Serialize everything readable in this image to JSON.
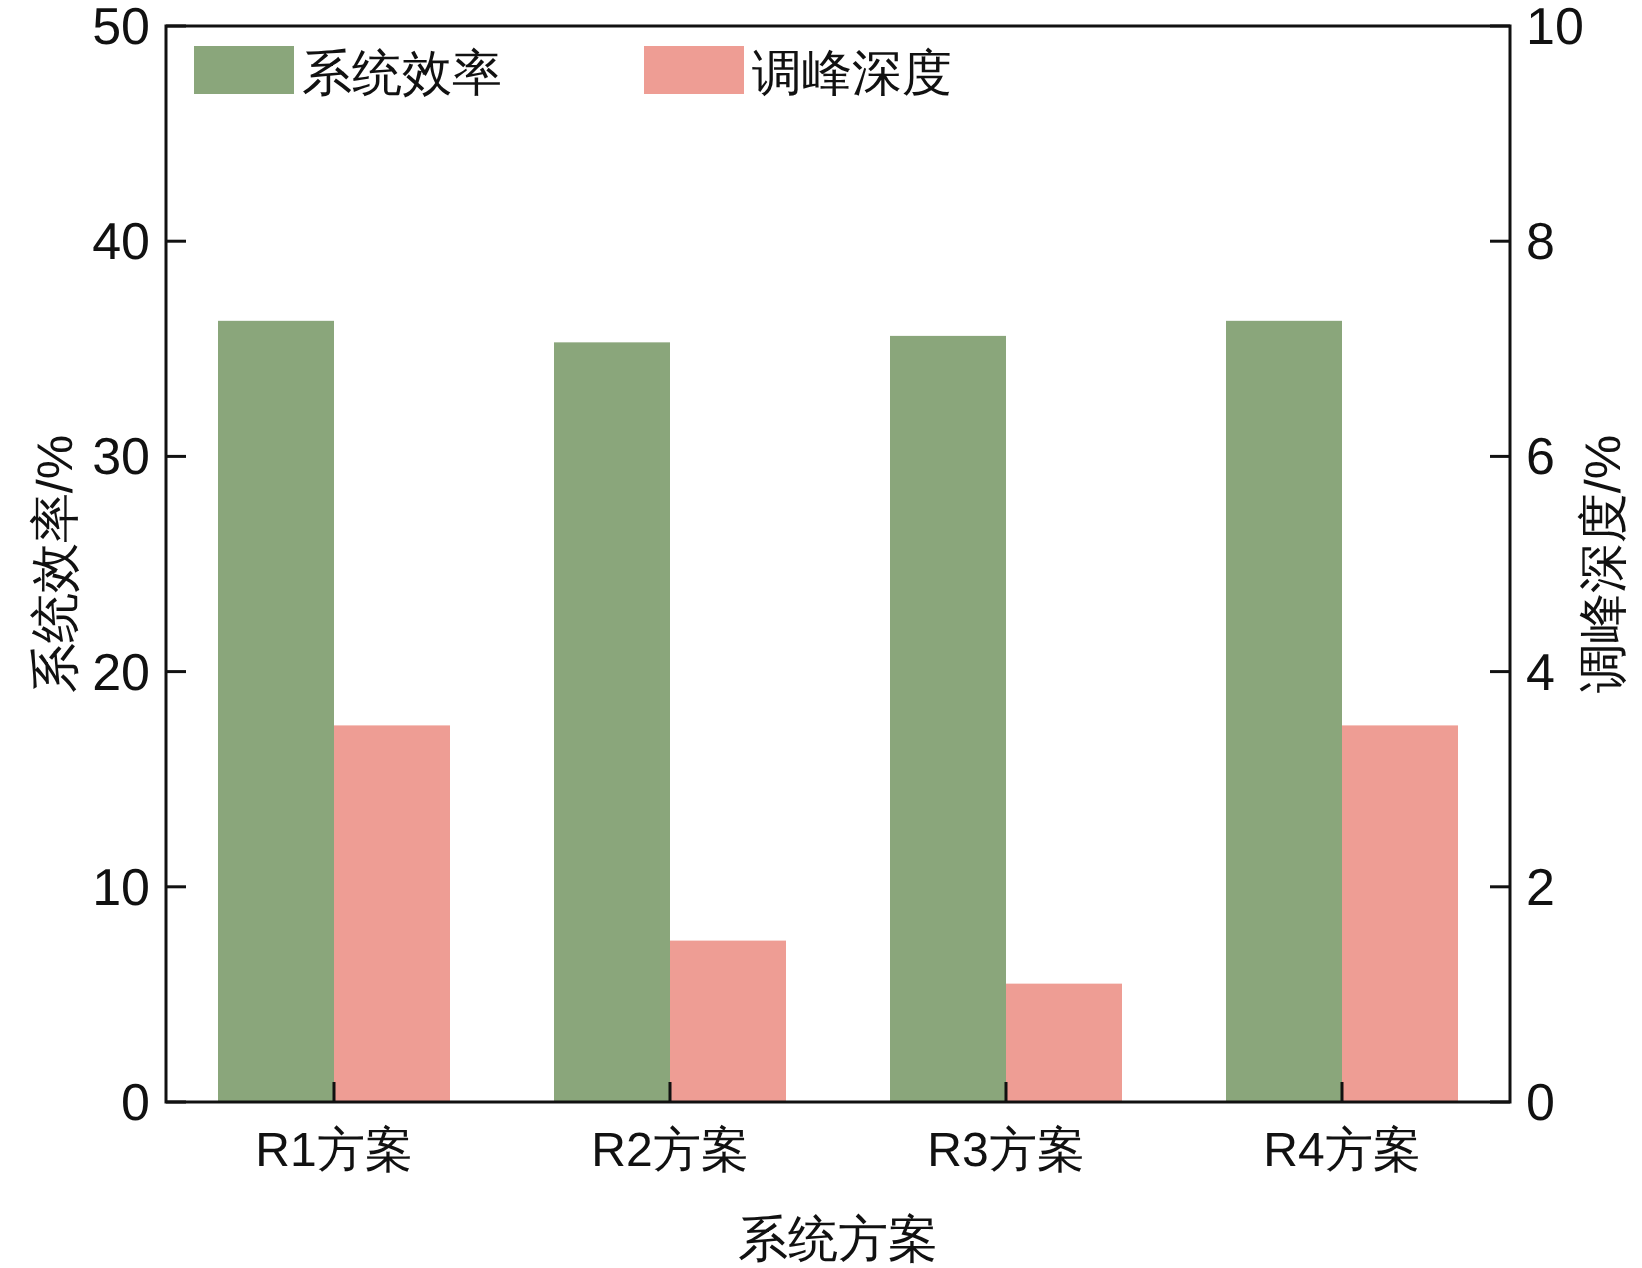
{
  "chart_data": {
    "type": "bar",
    "xlabel": "系统方案",
    "ylabel": "系统效率/%",
    "y2label": "调峰深度/%",
    "categories": [
      "R1方案",
      "R2方案",
      "R3方案",
      "R4方案"
    ],
    "series": [
      {
        "name": "系统效率",
        "color": "#8aa67b",
        "values": [
          36.3,
          35.3,
          35.6,
          36.3
        ]
      },
      {
        "name": "调峰深度",
        "color": "#ee9d94",
        "values": [
          3.5,
          1.5,
          1.1,
          3.5
        ],
        "axis": "y2"
      }
    ],
    "ylim": [
      0,
      50
    ],
    "yticks": [
      0,
      10,
      20,
      30,
      40,
      50
    ],
    "y2lim": [
      0,
      10
    ],
    "y2ticks": [
      0,
      2,
      4,
      6,
      8,
      10
    ],
    "legend": "top left"
  }
}
